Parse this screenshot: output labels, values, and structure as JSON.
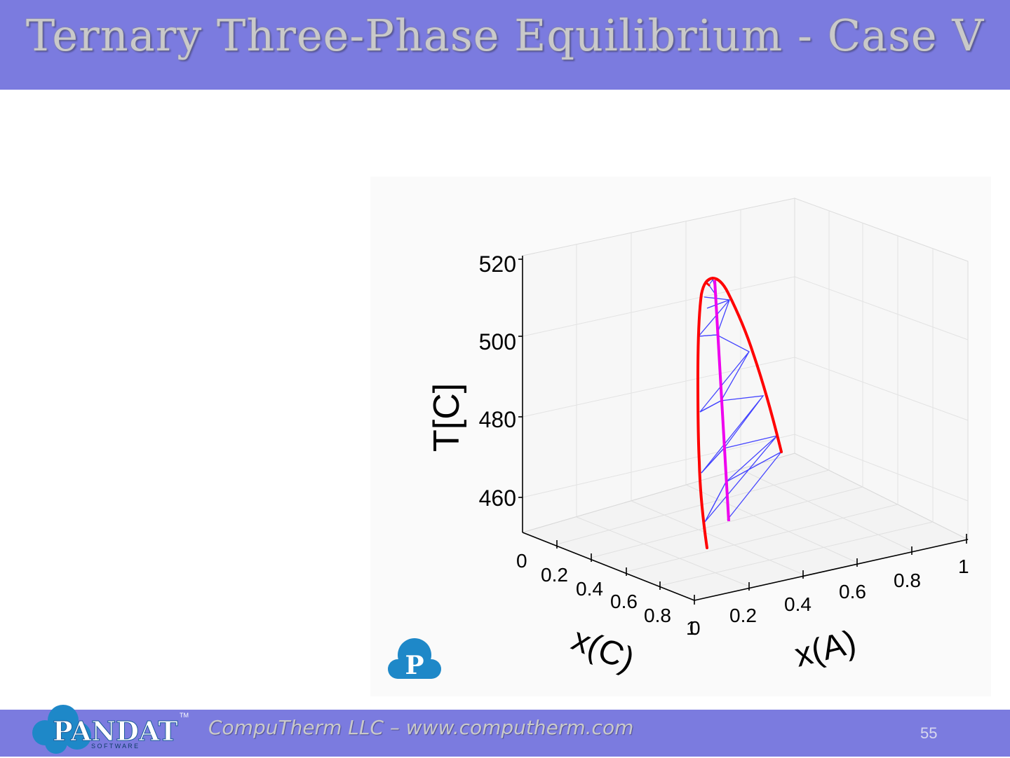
{
  "slide": {
    "title": "Ternary Three-Phase Equilibrium - Case V",
    "footer_text": "CompuTherm LLC – www.computherm.com",
    "page_number": "55"
  },
  "logo": {
    "brand": "PANDAT",
    "tagline": "S O F T W A R E",
    "trademark": "TM",
    "icon_letter": "P"
  },
  "colors": {
    "header_bar": "#7b7bdf",
    "boundary_curve": "#ff0000",
    "tie_lines": "#4444ff",
    "invariant_line": "#ee00ee",
    "logo_blue": "#1e88c8"
  },
  "chart_data": {
    "type": "3d-line",
    "zlabel": "T[C]",
    "xlabel": "x(A)",
    "ylabel": "x(C)",
    "z_ticks": [
      "460",
      "480",
      "500",
      "520"
    ],
    "x_ticks": [
      "0",
      "0.2",
      "0.4",
      "0.6",
      "0.8",
      "1"
    ],
    "y_ticks": [
      "0",
      "0.2",
      "0.4",
      "0.6",
      "0.8",
      "1"
    ],
    "zlim": [
      450,
      520
    ],
    "xlim": [
      0,
      1
    ],
    "ylim": [
      0,
      1
    ],
    "grid": true,
    "series": [
      {
        "role": "boundary",
        "color": "#ff0000"
      },
      {
        "role": "tie-lines",
        "color": "#4444ff"
      },
      {
        "role": "invariant",
        "color": "#ee00ee"
      }
    ]
  }
}
